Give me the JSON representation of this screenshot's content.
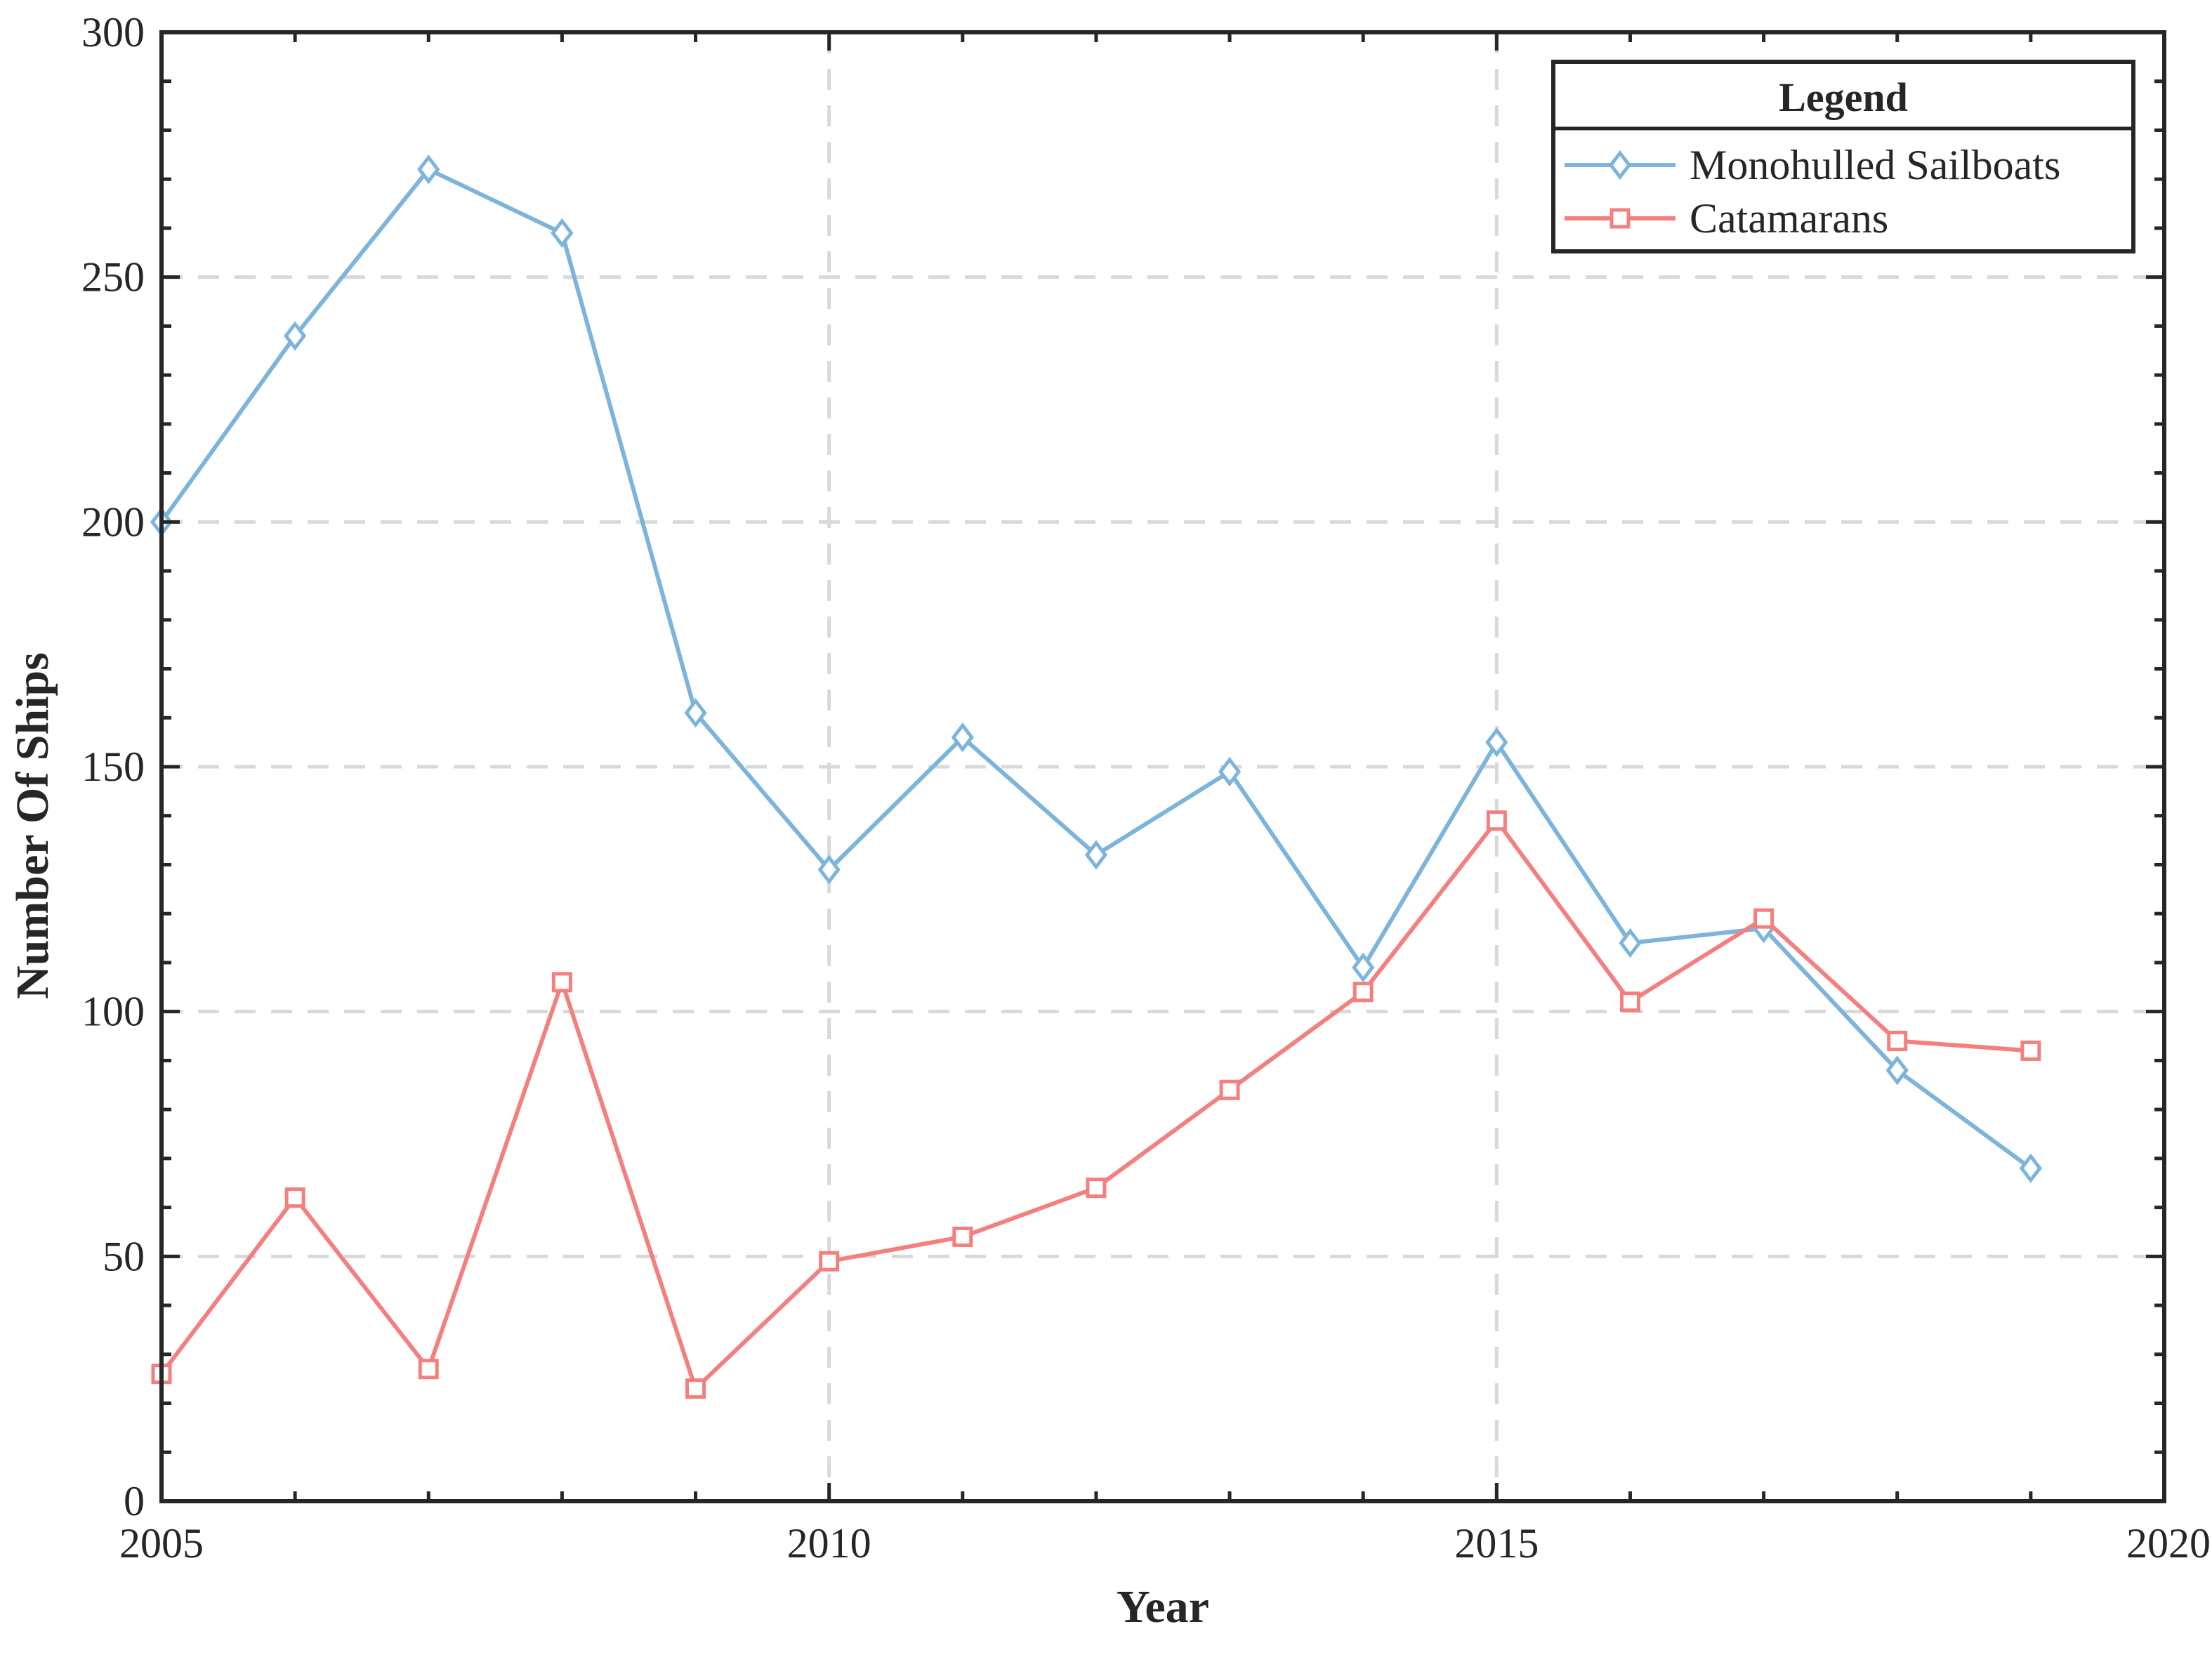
{
  "chart_data": {
    "type": "line",
    "title": "",
    "xlabel": "Year",
    "ylabel": "Number Of Ships",
    "xlim": [
      2005,
      2020
    ],
    "ylim": [
      0,
      300
    ],
    "xticks": [
      2005,
      2010,
      2015,
      2020
    ],
    "yticks": [
      0,
      50,
      100,
      150,
      200,
      250,
      300
    ],
    "grid": true,
    "legend": {
      "title": "Legend",
      "position": "top-right"
    },
    "x": [
      2005,
      2006,
      2007,
      2008,
      2009,
      2010,
      2011,
      2012,
      2013,
      2014,
      2015,
      2016,
      2017,
      2018,
      2019
    ],
    "series": [
      {
        "name": "Monohulled Sailboats",
        "color": "#7db4db",
        "marker": "diamond",
        "values": [
          200,
          238,
          272,
          259,
          161,
          129,
          156,
          132,
          149,
          109,
          155,
          114,
          117,
          88,
          68
        ]
      },
      {
        "name": "Catamarans",
        "color": "#f47f7f",
        "marker": "square",
        "values": [
          26,
          62,
          27,
          106,
          23,
          49,
          54,
          64,
          84,
          104,
          139,
          102,
          119,
          94,
          92
        ]
      }
    ]
  }
}
